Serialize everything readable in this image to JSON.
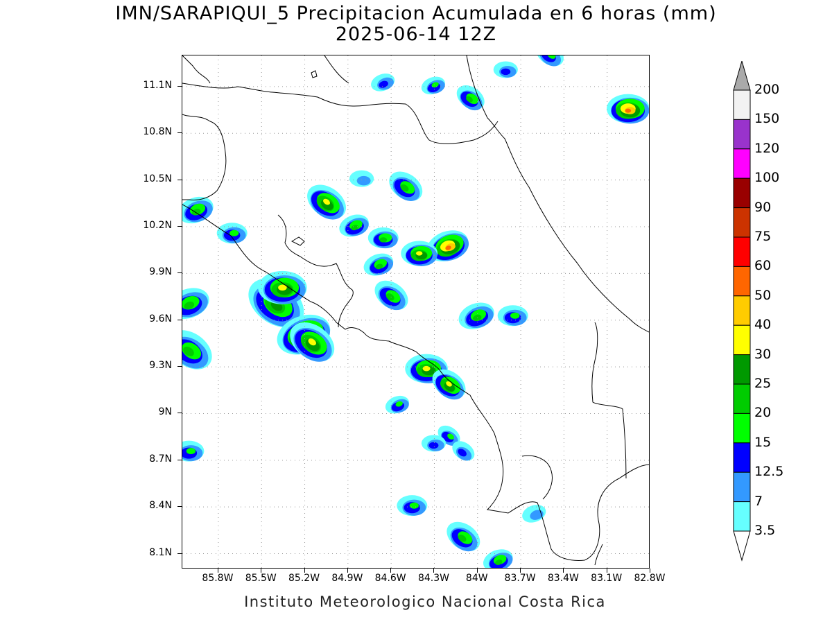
{
  "title": {
    "line1": "IMN/SARAPIQUI_5 Precipitacion Acumulada en 6 horas (mm)",
    "line2": "2025-06-14 12Z"
  },
  "footer": "Instituto Meteorologico Nacional Costa Rica",
  "map": {
    "projection": "lat-lon",
    "lon_range": [
      -86.05,
      -82.8
    ],
    "lat_range": [
      8.0,
      11.3
    ],
    "grid": "dotted",
    "lat_ticks": [
      {
        "value": 8.1,
        "label": "8.1N"
      },
      {
        "value": 8.4,
        "label": "8.4N"
      },
      {
        "value": 8.7,
        "label": "8.7N"
      },
      {
        "value": 9.0,
        "label": "9N"
      },
      {
        "value": 9.3,
        "label": "9.3N"
      },
      {
        "value": 9.6,
        "label": "9.6N"
      },
      {
        "value": 9.9,
        "label": "9.9N"
      },
      {
        "value": 10.2,
        "label": "10.2N"
      },
      {
        "value": 10.5,
        "label": "10.5N"
      },
      {
        "value": 10.8,
        "label": "10.8N"
      },
      {
        "value": 11.1,
        "label": "11.1N"
      }
    ],
    "lon_ticks": [
      {
        "value": -85.8,
        "label": "85.8W"
      },
      {
        "value": -85.5,
        "label": "85.5W"
      },
      {
        "value": -85.2,
        "label": "85.2W"
      },
      {
        "value": -84.9,
        "label": "84.9W"
      },
      {
        "value": -84.6,
        "label": "84.6W"
      },
      {
        "value": -84.3,
        "label": "84.3W"
      },
      {
        "value": -84.0,
        "label": "84W"
      },
      {
        "value": -83.7,
        "label": "83.7W"
      },
      {
        "value": -83.4,
        "label": "83.4W"
      },
      {
        "value": -83.1,
        "label": "83.1W"
      },
      {
        "value": -82.8,
        "label": "82.8W"
      }
    ]
  },
  "colorbar": {
    "levels": [
      "3.5",
      "7",
      "12.5",
      "15",
      "20",
      "25",
      "30",
      "40",
      "50",
      "60",
      "75",
      "90",
      "100",
      "120",
      "150",
      "200"
    ],
    "colors": [
      "#66ffff",
      "#3399ff",
      "#0000ff",
      "#00ff00",
      "#00cc00",
      "#009900",
      "#ffff00",
      "#ffcc00",
      "#ff6600",
      "#ff0000",
      "#cc3300",
      "#990000",
      "#ff00ff",
      "#9933cc",
      "#f2f2f2",
      "#aaaaaa"
    ]
  },
  "rain_cells": [
    {
      "lon": -85.4,
      "lat": 9.7,
      "level": 5,
      "spread": 1.0
    },
    {
      "lon": -85.2,
      "lat": 9.5,
      "level": 8,
      "spread": 0.9
    },
    {
      "lon": -85.35,
      "lat": 9.8,
      "level": 6,
      "spread": 0.8
    },
    {
      "lon": -85.15,
      "lat": 9.45,
      "level": 6,
      "spread": 0.8
    },
    {
      "lon": -85.95,
      "lat": 10.3,
      "level": 4,
      "spread": 0.6
    },
    {
      "lon": -85.7,
      "lat": 10.15,
      "level": 3,
      "spread": 0.5
    },
    {
      "lon": -86.0,
      "lat": 9.4,
      "level": 4,
      "spread": 0.8
    },
    {
      "lon": -86.0,
      "lat": 9.7,
      "level": 4,
      "spread": 0.7
    },
    {
      "lon": -86.0,
      "lat": 8.75,
      "level": 3,
      "spread": 0.5
    },
    {
      "lon": -85.05,
      "lat": 10.35,
      "level": 6,
      "spread": 0.7
    },
    {
      "lon": -84.85,
      "lat": 10.2,
      "level": 4,
      "spread": 0.5
    },
    {
      "lon": -84.65,
      "lat": 10.12,
      "level": 4,
      "spread": 0.5
    },
    {
      "lon": -84.5,
      "lat": 10.45,
      "level": 4,
      "spread": 0.6
    },
    {
      "lon": -84.2,
      "lat": 10.07,
      "level": 8,
      "spread": 0.7
    },
    {
      "lon": -84.4,
      "lat": 10.02,
      "level": 6,
      "spread": 0.6
    },
    {
      "lon": -84.6,
      "lat": 9.75,
      "level": 4,
      "spread": 0.6
    },
    {
      "lon": -84.68,
      "lat": 9.95,
      "level": 4,
      "spread": 0.5
    },
    {
      "lon": -84.35,
      "lat": 9.28,
      "level": 6,
      "spread": 0.7
    },
    {
      "lon": -84.2,
      "lat": 9.18,
      "level": 6,
      "spread": 0.6
    },
    {
      "lon": -84.0,
      "lat": 9.62,
      "level": 4,
      "spread": 0.6
    },
    {
      "lon": -83.75,
      "lat": 9.62,
      "level": 3,
      "spread": 0.5
    },
    {
      "lon": -84.05,
      "lat": 11.02,
      "level": 4,
      "spread": 0.5
    },
    {
      "lon": -84.3,
      "lat": 11.1,
      "level": 3,
      "spread": 0.4
    },
    {
      "lon": -82.95,
      "lat": 10.95,
      "level": 8,
      "spread": 0.7
    },
    {
      "lon": -84.1,
      "lat": 8.2,
      "level": 4,
      "spread": 0.6
    },
    {
      "lon": -83.85,
      "lat": 8.05,
      "level": 4,
      "spread": 0.5
    },
    {
      "lon": -84.45,
      "lat": 8.4,
      "level": 3,
      "spread": 0.5
    },
    {
      "lon": -84.2,
      "lat": 8.85,
      "level": 3,
      "spread": 0.4
    },
    {
      "lon": -84.55,
      "lat": 9.05,
      "level": 3,
      "spread": 0.4
    },
    {
      "lon": -84.3,
      "lat": 8.8,
      "level": 2,
      "spread": 0.4
    },
    {
      "lon": -84.1,
      "lat": 8.75,
      "level": 2,
      "spread": 0.4
    },
    {
      "lon": -83.6,
      "lat": 8.35,
      "level": 1,
      "spread": 0.4
    },
    {
      "lon": -84.8,
      "lat": 10.5,
      "level": 1,
      "spread": 0.4
    },
    {
      "lon": -83.5,
      "lat": 11.3,
      "level": 3,
      "spread": 0.5
    },
    {
      "lon": -84.65,
      "lat": 11.12,
      "level": 2,
      "spread": 0.4
    },
    {
      "lon": -83.8,
      "lat": 11.2,
      "level": 2,
      "spread": 0.4
    }
  ]
}
